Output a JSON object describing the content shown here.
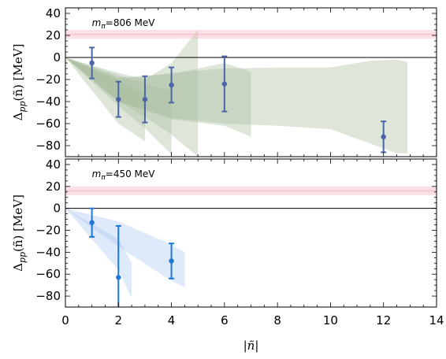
{
  "chart_data": [
    {
      "type": "scatter",
      "panel": "top",
      "annotation": "mπ=806 MeV",
      "annotation_parts": {
        "symbol": "m",
        "sub": "π",
        "rest": "=806 MeV"
      },
      "ylabel": "Δpp(ñ) [MeV]",
      "ylabel_parts": {
        "main": "Δ",
        "sub": "pp",
        "arg": "(ñ) [MeV]"
      },
      "xlim": [
        0,
        14
      ],
      "ylim": [
        -90,
        45
      ],
      "yticks": [
        40,
        20,
        0,
        -20,
        -40,
        -60,
        -80
      ],
      "ytick_labels": [
        "40",
        "20",
        "0",
        "−20",
        "−40",
        "−60",
        "−80"
      ],
      "reference_band": {
        "center": 21,
        "halfwidth": 4,
        "color": "#f4aab4"
      },
      "points": [
        {
          "x": 1,
          "y": -5,
          "err": 14
        },
        {
          "x": 2,
          "y": -38,
          "err": 16
        },
        {
          "x": 3,
          "y": -38,
          "err": 21
        },
        {
          "x": 4,
          "y": -25,
          "err": 16
        },
        {
          "x": 6,
          "y": -24,
          "err": 25
        },
        {
          "x": 12,
          "y": -72,
          "err": 14
        }
      ],
      "bands": [
        {
          "from": 0,
          "x": [
            2,
            3
          ],
          "upper": [
            -20,
            -34
          ],
          "lower": [
            -60,
            -76
          ]
        },
        {
          "from": 0,
          "x": [
            2,
            3,
            4
          ],
          "upper": [
            -16,
            -24,
            -30
          ],
          "lower": [
            -44,
            -64,
            -88
          ]
        },
        {
          "from": 0,
          "x": [
            2,
            3,
            4,
            5
          ],
          "upper": [
            -14,
            -20,
            -5,
            25
          ],
          "lower": [
            -40,
            -54,
            -70,
            -90
          ]
        },
        {
          "from": 0,
          "x": [
            2,
            4,
            6,
            7
          ],
          "upper": [
            -18,
            -15,
            -5,
            -13
          ],
          "lower": [
            -40,
            -56,
            -62,
            -72
          ]
        },
        {
          "from": 0,
          "x": [
            2,
            4,
            6,
            8,
            10,
            11.5,
            12.5,
            12.9
          ],
          "upper": [
            -20,
            -14,
            -10,
            -9,
            -9,
            -3,
            -2,
            -4
          ],
          "lower": [
            -40,
            -55,
            -60,
            -62,
            -65,
            -78,
            -87,
            -87
          ]
        }
      ],
      "colors": {
        "point": "#4a65a8",
        "band": "#a9bc9f",
        "line": "#000000"
      }
    },
    {
      "type": "scatter",
      "panel": "bottom",
      "annotation": "mπ=450 MeV",
      "annotation_parts": {
        "symbol": "m",
        "sub": "π",
        "rest": "=450 MeV"
      },
      "ylabel": "Δpp(ñ) [MeV]",
      "ylabel_parts": {
        "main": "Δ",
        "sub": "pp",
        "arg": "(ñ) [MeV]"
      },
      "xlabel": "|ñ|",
      "xlim": [
        0,
        14
      ],
      "ylim": [
        -90,
        45
      ],
      "xticks": [
        0,
        2,
        4,
        6,
        8,
        10,
        12,
        14
      ],
      "xtick_labels": [
        "0",
        "2",
        "4",
        "6",
        "8",
        "10",
        "12",
        "14"
      ],
      "yticks": [
        40,
        20,
        0,
        -20,
        -40,
        -60,
        -80
      ],
      "ytick_labels": [
        "40",
        "20",
        "0",
        "−20",
        "−40",
        "−60",
        "−80"
      ],
      "reference_band": {
        "center": 16,
        "halfwidth": 4,
        "color": "#f4aab4"
      },
      "points": [
        {
          "x": 1,
          "y": -13,
          "err": 13
        },
        {
          "x": 2,
          "y": -63,
          "err": 47
        },
        {
          "x": 4,
          "y": -48,
          "err": 16
        }
      ],
      "bands": [
        {
          "from": 0,
          "x": [
            2,
            2.5
          ],
          "upper": [
            -28,
            -50
          ],
          "lower": [
            -56,
            -82
          ]
        },
        {
          "from": 0,
          "x": [
            2,
            4,
            4.5
          ],
          "upper": [
            -12,
            -33,
            -40
          ],
          "lower": [
            -35,
            -66,
            -72
          ]
        }
      ],
      "colors": {
        "point": "#1f78d6",
        "band": "#a8c4ee",
        "line": "#000000"
      }
    }
  ]
}
